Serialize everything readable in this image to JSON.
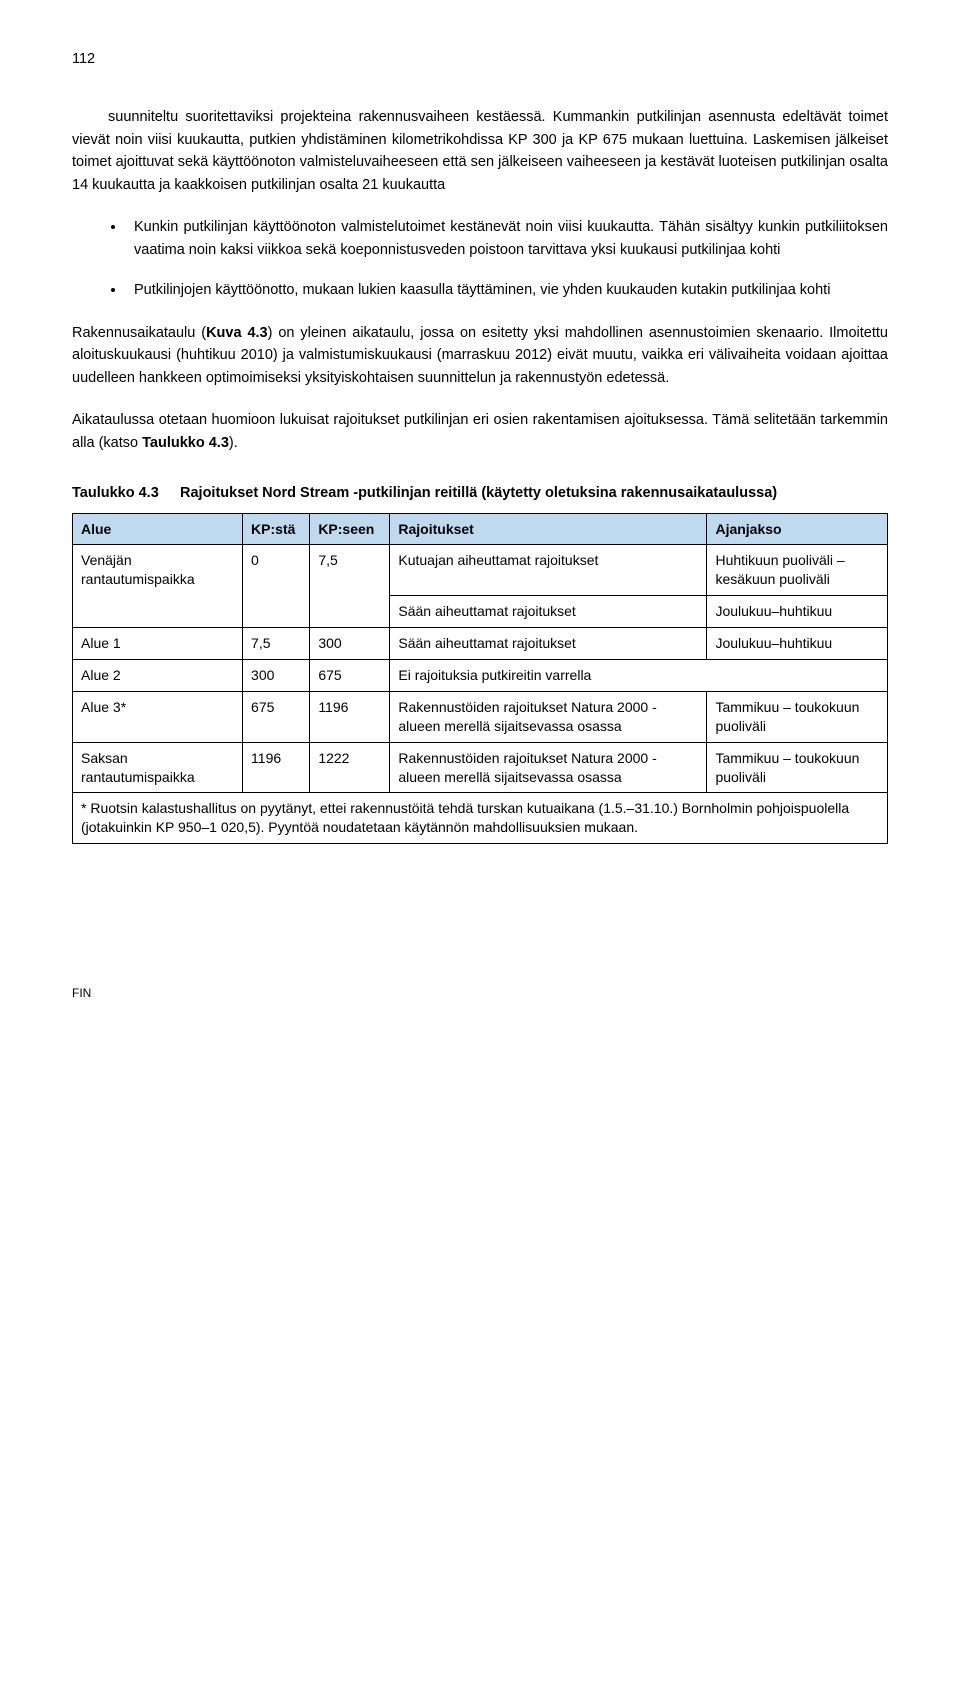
{
  "page_number": "112",
  "intro_para": "suunniteltu suoritettaviksi projekteina rakennusvaiheen kestäessä. Kummankin putkilinjan asennusta edeltävät toimet vievät noin viisi kuukautta, putkien yhdistäminen kilometrikohdissa KP 300 ja KP 675 mukaan luettuina. Laskemisen jälkeiset toimet ajoittuvat sekä käyttöönoton valmisteluvaiheeseen että sen jälkeiseen vaiheeseen ja kestävät luoteisen putkilinjan osalta 14 kuukautta ja kaakkoisen putkilinjan osalta 21 kuukautta",
  "bullets": [
    "Kunkin putkilinjan käyttöönoton valmistelutoimet kestänevät noin viisi kuukautta. Tähän sisältyy kunkin putkiliitoksen vaatima noin kaksi viikkoa sekä koeponnistusveden poistoon tarvittava yksi kuukausi putkilinjaa kohti",
    "Putkilinjojen käyttöönotto, mukaan lukien kaasulla täyttäminen, vie yhden kuukauden kutakin putkilinjaa kohti"
  ],
  "para2_prefix": "Rakennusaikataulu (",
  "para2_bold": "Kuva 4.3",
  "para2_suffix": ") on yleinen aikataulu, jossa on esitetty yksi mahdollinen asennustoimien skenaario. Ilmoitettu aloituskuukausi (huhtikuu 2010) ja valmistumiskuukausi (marraskuu 2012) eivät muutu, vaikka eri välivaiheita voidaan ajoittaa uudelleen hankkeen optimoimiseksi yksityiskohtaisen suunnittelun ja rakennustyön edetessä.",
  "para3_prefix": "Aikataulussa otetaan huomioon lukuisat rajoitukset putkilinjan eri osien rakentamisen ajoituksessa. Tämä selitetään tarkemmin alla (katso ",
  "para3_bold": "Taulukko 4.3",
  "para3_suffix": ").",
  "table_caption_label": "Taulukko 4.3",
  "table_caption_text": "Rajoitukset Nord Stream -putkilinjan reitillä (käytetty oletuksina rakennusaikataulussa)",
  "table": {
    "header_bg": "#bfd9ee",
    "border_color": "#000000",
    "columns": [
      "Alue",
      "KP:stä",
      "KP:seen",
      "Rajoitukset",
      "Ajanjakso"
    ],
    "rows": [
      {
        "area": "Venäjän rantautumispaikka",
        "from": "0",
        "to": "7,5",
        "sub": [
          {
            "restriction": "Kutuajan aiheuttamat rajoitukset",
            "period": "Huhtikuun puoliväli – kesäkuun puoliväli"
          },
          {
            "restriction": "Sään aiheuttamat rajoitukset",
            "period": "Joulukuu–huhtikuu"
          }
        ]
      },
      {
        "area": "Alue 1",
        "from": "7,5",
        "to": "300",
        "restriction": "Sään aiheuttamat rajoitukset",
        "period": "Joulukuu–huhtikuu"
      },
      {
        "area": "Alue 2",
        "from": "300",
        "to": "675",
        "restriction": "Ei rajoituksia putkireitin varrella",
        "period": ""
      },
      {
        "area": "Alue 3*",
        "from": "675",
        "to": "1196",
        "restriction": "Rakennustöiden rajoitukset Natura 2000 -alueen merellä sijaitsevassa osassa",
        "period": "Tammikuu – toukokuun puoliväli"
      },
      {
        "area": "Saksan rantautumispaikka",
        "from": "1196",
        "to": "1222",
        "restriction": "Rakennustöiden rajoitukset Natura 2000 -alueen merellä sijaitsevassa osassa",
        "period": "Tammikuu – toukokuun puoliväli"
      }
    ],
    "footnote": "* Ruotsin kalastushallitus on pyytänyt, ettei rakennustöitä tehdä turskan kutuaikana (1.5.–31.10.) Bornholmin pohjoispuolella (jotakuinkin KP 950–1 020,5). Pyyntöä noudatetaan käytännön mahdollisuuksien mukaan."
  },
  "footer": "FIN"
}
